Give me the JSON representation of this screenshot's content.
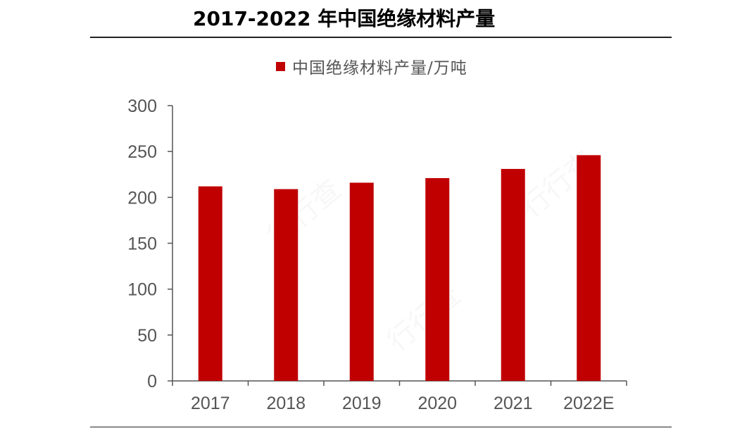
{
  "page": {
    "title": "2017-2022 年中国绝缘材料产量"
  },
  "colors": {
    "bar": "#c00000",
    "axis": "#555555",
    "text": "#000000",
    "tick_text": "#555555"
  },
  "chart_data": {
    "type": "bar",
    "title": "2017-2022 年中国绝缘材料产量",
    "categories": [
      "2017",
      "2018",
      "2019",
      "2020",
      "2021",
      "2022E"
    ],
    "series": [
      {
        "name": "中国绝缘材料产量/万吨",
        "values": [
          212,
          209,
          216,
          221,
          231,
          246
        ]
      }
    ],
    "xlabel": "",
    "ylabel": "",
    "ylim": [
      0,
      300
    ],
    "yticks": [
      0,
      50,
      100,
      150,
      200,
      250,
      300
    ],
    "grid": false,
    "legend_position": "top"
  }
}
